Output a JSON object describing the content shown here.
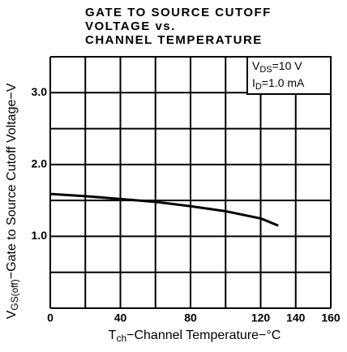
{
  "chart_data": {
    "type": "line",
    "title": [
      "GATE TO SOURCE CUTOFF",
      "VOLTAGE vs.",
      "CHANNEL TEMPERATURE"
    ],
    "xlabel": {
      "symbol": "T",
      "subscript": "ch",
      "text": "−Channel Temperature−°C"
    },
    "ylabel": {
      "symbol": "V",
      "subscript": "GS(off)",
      "text": "−Gate to Source Cutoff Voltage−V"
    },
    "annotations": [
      {
        "symbol": "V",
        "subscript": "DS",
        "text": "=10 V"
      },
      {
        "symbol": "I",
        "subscript": "D",
        "text": "=1.0 mA"
      }
    ],
    "x": [
      0,
      20,
      40,
      60,
      80,
      100,
      120,
      130
    ],
    "series": [
      {
        "color": "#000000",
        "values": [
          1.59,
          1.56,
          1.52,
          1.48,
          1.42,
          1.35,
          1.25,
          1.15
        ]
      }
    ],
    "xlim": [
      0,
      160
    ],
    "ylim": [
      0,
      3.5
    ],
    "xticks": [
      0,
      40,
      80,
      120,
      140,
      160
    ],
    "yticks": [
      {
        "value": 1,
        "label": "1.0"
      },
      {
        "value": 2,
        "label": "2.0"
      },
      {
        "value": 3,
        "label": "3.0"
      }
    ],
    "xgrid": [
      0,
      20,
      40,
      60,
      80,
      100,
      120,
      140,
      160
    ],
    "ygrid": [
      0,
      0.5,
      1,
      1.5,
      2,
      2.5,
      3,
      3.5
    ],
    "grid": true
  }
}
